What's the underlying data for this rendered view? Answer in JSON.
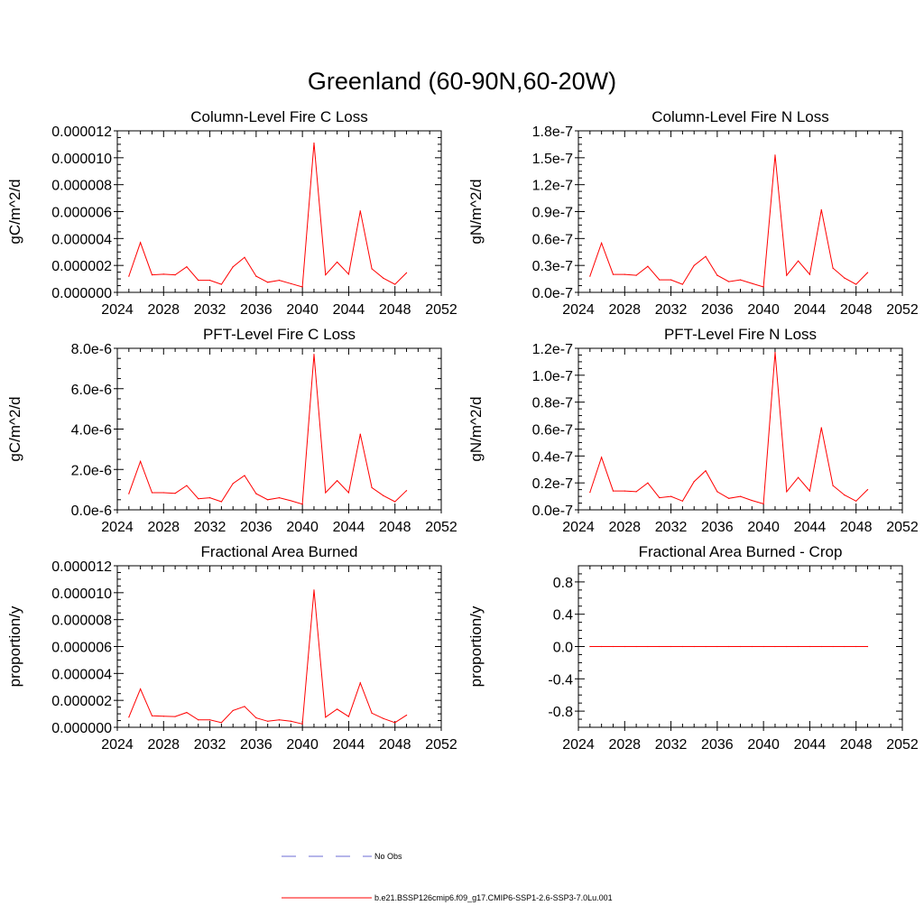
{
  "figure": {
    "title": "Greenland (60-90N,60-20W)"
  },
  "chart_data": [
    {
      "type": "line",
      "title": "Column-Level Fire C Loss",
      "ylabel": "gC/m^2/d",
      "xlim": [
        2024,
        2052
      ],
      "ylim": [
        0,
        1.2e-05
      ],
      "x_ticks": [
        "2024",
        "2028",
        "2032",
        "2036",
        "2040",
        "2044",
        "2048",
        "2052"
      ],
      "y_ticks": [
        {
          "value": 0,
          "label": "0.000000"
        },
        {
          "value": 2e-06,
          "label": "0.000002"
        },
        {
          "value": 4e-06,
          "label": "0.000004"
        },
        {
          "value": 6e-06,
          "label": "0.000006"
        },
        {
          "value": 8e-06,
          "label": "0.000008"
        },
        {
          "value": 1e-05,
          "label": "0.000010"
        },
        {
          "value": 1.2e-05,
          "label": "0.000012"
        }
      ],
      "x": [
        2025,
        2026,
        2027,
        2028,
        2029,
        2030,
        2031,
        2032,
        2033,
        2034,
        2035,
        2036,
        2037,
        2038,
        2039,
        2040,
        2041,
        2042,
        2043,
        2044,
        2045,
        2046,
        2047,
        2048,
        2049
      ],
      "values": [
        1.2e-06,
        3.7e-06,
        1.3e-06,
        1.35e-06,
        1.3e-06,
        1.9e-06,
        9e-07,
        9e-07,
        6e-07,
        1.9e-06,
        2.6e-06,
        1.2e-06,
        7.5e-07,
        9e-07,
        6.5e-07,
        4e-07,
        1.11e-05,
        1.3e-06,
        2.25e-06,
        1.35e-06,
        6.05e-06,
        1.75e-06,
        1.05e-06,
        6e-07,
        1.45e-06
      ]
    },
    {
      "type": "line",
      "title": "Column-Level Fire N Loss",
      "ylabel": "gN/m^2/d",
      "xlim": [
        2024,
        2052
      ],
      "ylim": [
        0,
        1.8e-07
      ],
      "x_ticks": [
        "2024",
        "2028",
        "2032",
        "2036",
        "2040",
        "2044",
        "2048",
        "2052"
      ],
      "y_ticks": [
        {
          "value": 0,
          "label": "0.0e-7"
        },
        {
          "value": 3e-08,
          "label": "0.3e-7"
        },
        {
          "value": 6e-08,
          "label": "0.6e-7"
        },
        {
          "value": 9e-08,
          "label": "0.9e-7"
        },
        {
          "value": 1.2e-07,
          "label": "1.2e-7"
        },
        {
          "value": 1.5e-07,
          "label": "1.5e-7"
        },
        {
          "value": 1.8e-07,
          "label": "1.8e-7"
        }
      ],
      "x": [
        2025,
        2026,
        2027,
        2028,
        2029,
        2030,
        2031,
        2032,
        2033,
        2034,
        2035,
        2036,
        2037,
        2038,
        2039,
        2040,
        2041,
        2042,
        2043,
        2044,
        2045,
        2046,
        2047,
        2048,
        2049
      ],
      "values": [
        1.8e-08,
        5.5e-08,
        2e-08,
        2e-08,
        1.9e-08,
        2.9e-08,
        1.4e-08,
        1.4e-08,
        9e-09,
        3e-08,
        4e-08,
        1.9e-08,
        1.2e-08,
        1.4e-08,
        1e-08,
        6e-09,
        1.53e-07,
        1.9e-08,
        3.5e-08,
        2e-08,
        9.2e-08,
        2.7e-08,
        1.6e-08,
        9e-09,
        2.2e-08
      ]
    },
    {
      "type": "line",
      "title": "PFT-Level Fire C Loss",
      "ylabel": "gC/m^2/d",
      "xlim": [
        2024,
        2052
      ],
      "ylim": [
        0,
        8e-06
      ],
      "x_ticks": [
        "2024",
        "2028",
        "2032",
        "2036",
        "2040",
        "2044",
        "2048",
        "2052"
      ],
      "y_ticks": [
        {
          "value": 0,
          "label": "0.0e-6"
        },
        {
          "value": 2e-06,
          "label": "2.0e-6"
        },
        {
          "value": 4e-06,
          "label": "4.0e-6"
        },
        {
          "value": 6e-06,
          "label": "6.0e-6"
        },
        {
          "value": 8e-06,
          "label": "8.0e-6"
        }
      ],
      "x": [
        2025,
        2026,
        2027,
        2028,
        2029,
        2030,
        2031,
        2032,
        2033,
        2034,
        2035,
        2036,
        2037,
        2038,
        2039,
        2040,
        2041,
        2042,
        2043,
        2044,
        2045,
        2046,
        2047,
        2048,
        2049
      ],
      "values": [
        8e-07,
        2.4e-06,
        8.5e-07,
        8.5e-07,
        8.2e-07,
        1.2e-06,
        5.5e-07,
        6e-07,
        4e-07,
        1.3e-06,
        1.7e-06,
        8e-07,
        5e-07,
        6e-07,
        4.5e-07,
        2.8e-07,
        7.7e-06,
        8.5e-07,
        1.45e-06,
        8.5e-07,
        3.75e-06,
        1.1e-06,
        7e-07,
        4e-07,
        9.5e-07
      ]
    },
    {
      "type": "line",
      "title": "PFT-Level Fire N Loss",
      "ylabel": "gN/m^2/d",
      "xlim": [
        2024,
        2052
      ],
      "ylim": [
        0,
        1.2e-07
      ],
      "x_ticks": [
        "2024",
        "2028",
        "2032",
        "2036",
        "2040",
        "2044",
        "2048",
        "2052"
      ],
      "y_ticks": [
        {
          "value": 0,
          "label": "0.0e-7"
        },
        {
          "value": 2e-08,
          "label": "0.2e-7"
        },
        {
          "value": 4e-08,
          "label": "0.4e-7"
        },
        {
          "value": 6e-08,
          "label": "0.6e-7"
        },
        {
          "value": 8e-08,
          "label": "0.8e-7"
        },
        {
          "value": 1e-07,
          "label": "1.0e-7"
        },
        {
          "value": 1.2e-07,
          "label": "1.2e-7"
        }
      ],
      "x": [
        2025,
        2026,
        2027,
        2028,
        2029,
        2030,
        2031,
        2032,
        2033,
        2034,
        2035,
        2036,
        2037,
        2038,
        2039,
        2040,
        2041,
        2042,
        2043,
        2044,
        2045,
        2046,
        2047,
        2048,
        2049
      ],
      "values": [
        1.3e-08,
        3.9e-08,
        1.4e-08,
        1.4e-08,
        1.35e-08,
        2e-08,
        9e-09,
        1e-08,
        6.5e-09,
        2.1e-08,
        2.9e-08,
        1.35e-08,
        8.5e-09,
        1e-08,
        7e-09,
        4.5e-09,
        1.17e-07,
        1.35e-08,
        2.4e-08,
        1.4e-08,
        6.1e-08,
        1.8e-08,
        1.1e-08,
        6.5e-09,
        1.5e-08
      ]
    },
    {
      "type": "line",
      "title": "Fractional Area Burned",
      "ylabel": "proportion/y",
      "xlim": [
        2024,
        2052
      ],
      "ylim": [
        0,
        1.2e-05
      ],
      "x_ticks": [
        "2024",
        "2028",
        "2032",
        "2036",
        "2040",
        "2044",
        "2048",
        "2052"
      ],
      "y_ticks": [
        {
          "value": 0,
          "label": "0.000000"
        },
        {
          "value": 2e-06,
          "label": "0.000002"
        },
        {
          "value": 4e-06,
          "label": "0.000004"
        },
        {
          "value": 6e-06,
          "label": "0.000006"
        },
        {
          "value": 8e-06,
          "label": "0.000008"
        },
        {
          "value": 1e-05,
          "label": "0.000010"
        },
        {
          "value": 1.2e-05,
          "label": "0.000012"
        }
      ],
      "x": [
        2025,
        2026,
        2027,
        2028,
        2029,
        2030,
        2031,
        2032,
        2033,
        2034,
        2035,
        2036,
        2037,
        2038,
        2039,
        2040,
        2041,
        2042,
        2043,
        2044,
        2045,
        2046,
        2047,
        2048,
        2049
      ],
      "values": [
        7.5e-07,
        2.85e-06,
        8.5e-07,
        8.2e-07,
        8e-07,
        1.1e-06,
        5.5e-07,
        5.5e-07,
        3.5e-07,
        1.25e-06,
        1.55e-06,
        7e-07,
        4.5e-07,
        5.5e-07,
        4.5e-07,
        2.5e-07,
        1.02e-05,
        7.5e-07,
        1.35e-06,
        8e-07,
        3.3e-06,
        1.05e-06,
        6.5e-07,
        3.5e-07,
        9e-07
      ]
    },
    {
      "type": "line",
      "title": "Fractional Area Burned - Crop",
      "ylabel": "proportion/y",
      "xlim": [
        2024,
        2052
      ],
      "ylim": [
        -1,
        1
      ],
      "x_ticks": [
        "2024",
        "2028",
        "2032",
        "2036",
        "2040",
        "2044",
        "2048",
        "2052"
      ],
      "y_ticks": [
        {
          "value": -0.8,
          "label": "-0.8"
        },
        {
          "value": -0.4,
          "label": "-0.4"
        },
        {
          "value": 0,
          "label": "0.0"
        },
        {
          "value": 0.4,
          "label": "0.4"
        },
        {
          "value": 0.8,
          "label": "0.8"
        }
      ],
      "x": [
        2025,
        2026,
        2027,
        2028,
        2029,
        2030,
        2031,
        2032,
        2033,
        2034,
        2035,
        2036,
        2037,
        2038,
        2039,
        2040,
        2041,
        2042,
        2043,
        2044,
        2045,
        2046,
        2047,
        2048,
        2049
      ],
      "values": [
        0,
        0,
        0,
        0,
        0,
        0,
        0,
        0,
        0,
        0,
        0,
        0,
        0,
        0,
        0,
        0,
        0,
        0,
        0,
        0,
        0,
        0,
        0,
        0,
        0
      ]
    }
  ],
  "legend": {
    "entries": [
      {
        "label": "No Obs",
        "color": "#6b6bd6",
        "style": "dashed"
      },
      {
        "label": "b.e21.BSSP126cmip6.f09_g17.CMIP6-SSP1-2.6-SSP3-7.0Lu.001",
        "color": "#ff0000",
        "style": "solid"
      }
    ]
  },
  "colors": {
    "series": "#ff0000",
    "obs": "#6b6bd6",
    "axes": "#000000"
  }
}
